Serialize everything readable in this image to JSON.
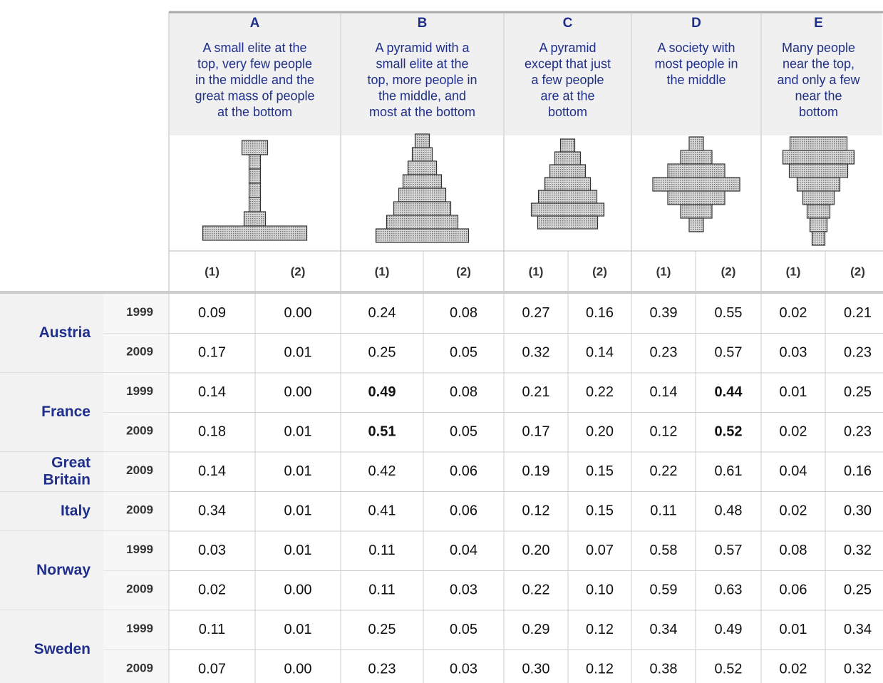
{
  "header": {
    "subcolumns": [
      "(1)",
      "(2)"
    ],
    "columns": [
      {
        "letter": "A",
        "description_lines": [
          "A small elite at the",
          "top, very few people",
          "in the middle and the",
          "great mass of people",
          "at the bottom"
        ]
      },
      {
        "letter": "B",
        "description_lines": [
          "A pyramid with a",
          "small elite at the",
          "top, more people in",
          "the middle, and",
          "most at the bottom"
        ]
      },
      {
        "letter": "C",
        "description_lines": [
          "A pyramid",
          "except that just",
          "a few people",
          "are at the",
          "bottom"
        ]
      },
      {
        "letter": "D",
        "description_lines": [
          "A society with",
          "most people in",
          "the middle"
        ]
      },
      {
        "letter": "E",
        "description_lines": [
          "Many people",
          "near the top,",
          "and only a few",
          "near the",
          "bottom"
        ]
      }
    ]
  },
  "highlight_color": "#f39a12",
  "table": {
    "countries": [
      {
        "name_lines": [
          "Austria"
        ],
        "rows": [
          {
            "year": "1999",
            "values": [
              "0.09",
              "0.00",
              "0.24",
              "0.08",
              "0.27",
              "0.16",
              "0.39",
              "0.55",
              "0.02",
              "0.21"
            ],
            "highlight": []
          },
          {
            "year": "2009",
            "values": [
              "0.17",
              "0.01",
              "0.25",
              "0.05",
              "0.32",
              "0.14",
              "0.23",
              "0.57",
              "0.03",
              "0.23"
            ],
            "highlight": []
          }
        ]
      },
      {
        "name_lines": [
          "France"
        ],
        "rows": [
          {
            "year": "1999",
            "values": [
              "0.14",
              "0.00",
              "0.49",
              "0.08",
              "0.21",
              "0.22",
              "0.14",
              "0.44",
              "0.01",
              "0.25"
            ],
            "highlight": [
              2,
              7
            ]
          },
          {
            "year": "2009",
            "values": [
              "0.18",
              "0.01",
              "0.51",
              "0.05",
              "0.17",
              "0.20",
              "0.12",
              "0.52",
              "0.02",
              "0.23"
            ],
            "highlight": [
              2,
              7
            ]
          }
        ]
      },
      {
        "name_lines": [
          "Great",
          "Britain"
        ],
        "rows": [
          {
            "year": "2009",
            "values": [
              "0.14",
              "0.01",
              "0.42",
              "0.06",
              "0.19",
              "0.15",
              "0.22",
              "0.61",
              "0.04",
              "0.16"
            ],
            "highlight": []
          }
        ]
      },
      {
        "name_lines": [
          "Italy"
        ],
        "rows": [
          {
            "year": "2009",
            "values": [
              "0.34",
              "0.01",
              "0.41",
              "0.06",
              "0.12",
              "0.15",
              "0.11",
              "0.48",
              "0.02",
              "0.30"
            ],
            "highlight": []
          }
        ]
      },
      {
        "name_lines": [
          "Norway"
        ],
        "rows": [
          {
            "year": "1999",
            "values": [
              "0.03",
              "0.01",
              "0.11",
              "0.04",
              "0.20",
              "0.07",
              "0.58",
              "0.57",
              "0.08",
              "0.32"
            ],
            "highlight": []
          },
          {
            "year": "2009",
            "values": [
              "0.02",
              "0.00",
              "0.11",
              "0.03",
              "0.22",
              "0.10",
              "0.59",
              "0.63",
              "0.06",
              "0.25"
            ],
            "highlight": []
          }
        ]
      },
      {
        "name_lines": [
          "Sweden"
        ],
        "rows": [
          {
            "year": "1999",
            "values": [
              "0.11",
              "0.01",
              "0.25",
              "0.05",
              "0.29",
              "0.12",
              "0.34",
              "0.49",
              "0.01",
              "0.34"
            ],
            "highlight": []
          },
          {
            "year": "2009",
            "values": [
              "0.07",
              "0.00",
              "0.23",
              "0.03",
              "0.30",
              "0.12",
              "0.38",
              "0.52",
              "0.02",
              "0.32"
            ],
            "highlight": []
          }
        ]
      }
    ]
  }
}
